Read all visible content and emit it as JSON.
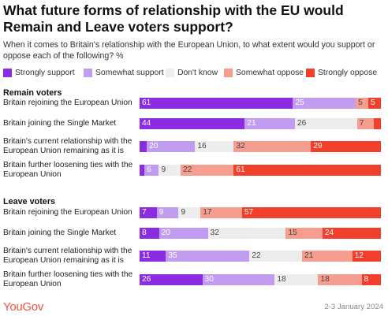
{
  "title": "What future forms of relationship with the EU would Remain and Leave voters support?",
  "subtitle": "When it comes to Britain's relationship with the European Union, to what extent would you support or oppose each of the following? %",
  "logo": "YouGov",
  "date": "2-3 January 2024",
  "colors": {
    "strongly_support": "#8b2be2",
    "somewhat_support": "#c29cf0",
    "dont_know": "#ededed",
    "somewhat_oppose": "#f59d8e",
    "strongly_oppose": "#f0402c"
  },
  "chart_data": {
    "type": "bar",
    "orientation": "horizontal",
    "stacked": true,
    "title": "What future forms of relationship with the EU would Remain and Leave voters support?",
    "subtitle": "When it comes to Britain's relationship with the European Union, to what extent would you support or oppose each of the following? %",
    "xlim": [
      0,
      100
    ],
    "legend_position": "top",
    "series_names": [
      "Strongly support",
      "Somewhat support",
      "Don't know",
      "Somewhat oppose",
      "Strongly oppose"
    ],
    "groups": [
      {
        "name": "Remain voters",
        "rows": [
          {
            "label": "Britain rejoining the European Union",
            "values": [
              61,
              25,
              0,
              5,
              5
            ]
          },
          {
            "label": "Britain joining the Single Market",
            "values": [
              44,
              21,
              26,
              7,
              3
            ]
          },
          {
            "label": "Britain's current relationship with the European Union remaining as it is",
            "values": [
              3,
              20,
              16,
              32,
              29
            ]
          },
          {
            "label": "Britain further loosening ties with the European Union",
            "values": [
              2,
              6,
              9,
              22,
              61
            ]
          }
        ]
      },
      {
        "name": "Leave voters",
        "rows": [
          {
            "label": "Britain rejoining the European Union",
            "values": [
              7,
              9,
              9,
              17,
              57
            ]
          },
          {
            "label": "Britain joining the Single Market",
            "values": [
              8,
              20,
              32,
              15,
              24
            ]
          },
          {
            "label": "Britain's current relationship with the European Union remaining as it is",
            "values": [
              11,
              35,
              22,
              21,
              12
            ]
          },
          {
            "label": "Britain further loosening ties with the European Union",
            "values": [
              26,
              30,
              18,
              18,
              8
            ]
          }
        ]
      }
    ]
  }
}
